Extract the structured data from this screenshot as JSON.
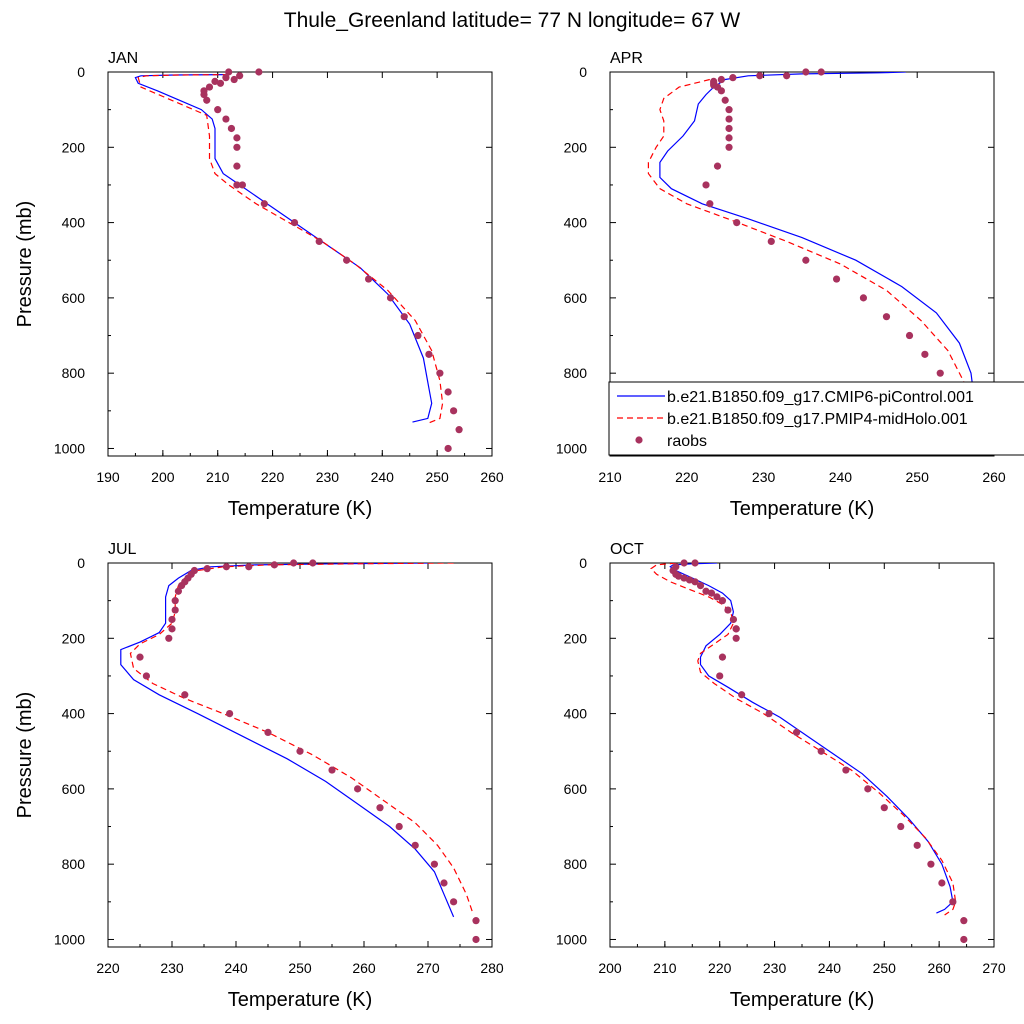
{
  "title": "Thule_Greenland  latitude= 77 N longitude= 67 W",
  "colors": {
    "control": "#0000ff",
    "midholo": "#ff0000",
    "raobs": "#a8325e",
    "axis": "#000000"
  },
  "legend": {
    "items": [
      {
        "label": "b.e21.B1850.f09_g17.CMIP6-piControl.001",
        "style": "solid",
        "color": "#0000ff"
      },
      {
        "label": "b.e21.B1850.f09_g17.PMIP4-midHolo.001",
        "style": "dashed",
        "color": "#ff0000"
      },
      {
        "label": "raobs",
        "style": "marker",
        "color": "#a8325e"
      }
    ],
    "placement": "inside APR panel, lower right"
  },
  "chart_data": [
    {
      "type": "line",
      "panel": "JAN",
      "xlabel": "Temperature (K)",
      "ylabel": "Pressure (mb)",
      "xlim": [
        190,
        260
      ],
      "ylim": [
        1020,
        0
      ],
      "y_reversed": true,
      "xticks": [
        190,
        200,
        210,
        220,
        230,
        240,
        250,
        260
      ],
      "yticks": [
        0,
        200,
        400,
        600,
        800,
        1000
      ],
      "show_ylabel": true,
      "series": [
        {
          "name": "b.e21.B1850.f09_g17.CMIP6-piControl.001",
          "style": "solid",
          "color": "#0000ff",
          "x": [
            211.5,
            202,
            196,
            195,
            195.5,
            199,
            203,
            207,
            209,
            209.5,
            209.5,
            211,
            214,
            218,
            224,
            230,
            236,
            241,
            245,
            247.5,
            248.5,
            249,
            248.3,
            245.5
          ],
          "y": [
            7,
            8,
            10,
            15,
            30,
            50,
            75,
            100,
            125,
            150,
            230,
            270,
            300,
            340,
            400,
            460,
            520,
            590,
            670,
            760,
            840,
            880,
            920,
            930
          ]
        },
        {
          "name": "b.e21.B1850.f09_g17.PMIP4-midHolo.001",
          "style": "dashed",
          "color": "#ff0000",
          "x": [
            212,
            203,
            197,
            195.5,
            196,
            200,
            204,
            208,
            208.5,
            208.5,
            209.5,
            212,
            217,
            223,
            229,
            235,
            241,
            246,
            249,
            250.5,
            251,
            250.5,
            248
          ],
          "y": [
            7,
            8,
            10,
            15,
            40,
            65,
            90,
            115,
            170,
            230,
            270,
            300,
            350,
            400,
            450,
            510,
            580,
            660,
            740,
            820,
            880,
            920,
            935
          ]
        },
        {
          "name": "raobs",
          "style": "marker",
          "color": "#a8325e",
          "x": [
            217.5,
            214,
            213,
            212,
            211.5,
            210.5,
            209.5,
            208.5,
            207.5,
            207.5,
            208,
            210,
            211.5,
            212.5,
            213.5,
            213.5,
            213.5,
            213.5,
            214.5,
            218.5,
            224,
            228.5,
            233.5,
            237.5,
            241.5,
            244,
            246.5,
            248.5,
            250.5,
            252,
            253,
            254,
            252
          ],
          "y": [
            0,
            10,
            20,
            0,
            15,
            30,
            25,
            40,
            50,
            60,
            75,
            100,
            125,
            150,
            175,
            200,
            250,
            300,
            300,
            350,
            400,
            450,
            500,
            550,
            600,
            650,
            700,
            750,
            800,
            850,
            900,
            950,
            1000
          ]
        }
      ]
    },
    {
      "type": "line",
      "panel": "APR",
      "xlabel": "Temperature (K)",
      "ylabel": "",
      "xlim": [
        210,
        260
      ],
      "ylim": [
        1020,
        0
      ],
      "y_reversed": true,
      "xticks": [
        210,
        220,
        230,
        240,
        250,
        260
      ],
      "yticks": [
        0,
        200,
        400,
        600,
        800,
        1000
      ],
      "show_ylabel": false,
      "series": [
        {
          "name": "b.e21.B1850.f09_g17.CMIP6-piControl.001",
          "style": "solid",
          "color": "#0000ff",
          "x": [
            248.5,
            245,
            235,
            228,
            225,
            223.5,
            222.5,
            221.5,
            221,
            219.5,
            217.5,
            216.5,
            216.5,
            218,
            222,
            228,
            235,
            242,
            248,
            252.5,
            255.5,
            257,
            257.5,
            257
          ],
          "y": [
            0,
            2,
            5,
            10,
            20,
            40,
            60,
            85,
            130,
            170,
            210,
            240,
            280,
            310,
            350,
            390,
            440,
            500,
            570,
            640,
            720,
            800,
            880,
            930
          ]
        },
        {
          "name": "b.e21.B1850.f09_g17.PMIP4-midHolo.001",
          "style": "dashed",
          "color": "#ff0000",
          "x": [
            223,
            219,
            217,
            216.5,
            217,
            217,
            216,
            215,
            215,
            216.5,
            220,
            226,
            233,
            240,
            246,
            250.5,
            254,
            256,
            257,
            256.5
          ],
          "y": [
            20,
            40,
            70,
            100,
            130,
            170,
            200,
            240,
            270,
            310,
            350,
            395,
            450,
            510,
            580,
            660,
            740,
            820,
            880,
            930
          ]
        },
        {
          "name": "raobs",
          "style": "marker",
          "color": "#a8325e",
          "x": [
            237.5,
            235.5,
            233,
            229.5,
            226,
            224.5,
            223.5,
            223.5,
            223.5,
            224,
            224.5,
            225,
            225.5,
            225.5,
            225.5,
            225.5,
            225.5,
            224,
            222.5,
            223,
            226.5,
            231,
            235.5,
            239.5,
            243,
            246,
            249,
            251,
            253,
            254.5,
            256,
            257,
            257
          ],
          "y": [
            0,
            0,
            10,
            10,
            15,
            20,
            25,
            30,
            35,
            40,
            50,
            75,
            100,
            125,
            150,
            175,
            200,
            250,
            300,
            350,
            400,
            450,
            500,
            550,
            600,
            650,
            700,
            750,
            800,
            850,
            900,
            950,
            1000
          ]
        }
      ]
    },
    {
      "type": "line",
      "panel": "JUL",
      "xlabel": "Temperature (K)",
      "ylabel": "Pressure (mb)",
      "xlim": [
        220,
        280
      ],
      "ylim": [
        1020,
        0
      ],
      "y_reversed": true,
      "xticks": [
        220,
        230,
        240,
        250,
        260,
        270,
        280
      ],
      "yticks": [
        0,
        200,
        400,
        600,
        800,
        1000
      ],
      "show_ylabel": true,
      "series": [
        {
          "name": "b.e21.B1850.f09_g17.CMIP6-piControl.001",
          "style": "solid",
          "color": "#0000ff",
          "x": [
            270,
            255,
            243,
            236,
            233,
            231,
            229.5,
            229,
            229,
            229,
            228,
            225,
            222,
            222,
            224,
            228,
            234,
            241,
            248,
            254,
            259,
            264,
            268,
            271,
            272.5,
            274
          ],
          "y": [
            0,
            2,
            5,
            10,
            20,
            40,
            60,
            90,
            130,
            160,
            185,
            210,
            230,
            270,
            310,
            350,
            400,
            460,
            520,
            580,
            640,
            700,
            760,
            820,
            880,
            940
          ]
        },
        {
          "name": "b.e21.B1850.f09_g17.PMIP4-midHolo.001",
          "style": "dashed",
          "color": "#ff0000",
          "x": [
            274,
            258,
            245,
            238,
            234,
            232,
            231,
            230.5,
            230.5,
            230,
            228,
            225,
            223.5,
            224,
            227,
            232,
            238,
            245,
            252,
            258,
            263,
            268,
            271.5,
            274,
            276,
            277
          ],
          "y": [
            0,
            2,
            5,
            10,
            20,
            40,
            60,
            90,
            130,
            160,
            190,
            215,
            240,
            280,
            320,
            360,
            400,
            450,
            510,
            570,
            630,
            690,
            750,
            810,
            880,
            930
          ]
        },
        {
          "name": "raobs",
          "style": "marker",
          "color": "#a8325e",
          "x": [
            252,
            249,
            246,
            242,
            238.5,
            235.5,
            233.5,
            233,
            232.5,
            232,
            231.5,
            231,
            230.5,
            230.5,
            230,
            230,
            229.5,
            225,
            226,
            232,
            239,
            245,
            250,
            255,
            259,
            262.5,
            265.5,
            268,
            271,
            272.5,
            274,
            277.5,
            277.5
          ],
          "y": [
            0,
            0,
            5,
            10,
            10,
            15,
            20,
            30,
            40,
            50,
            60,
            75,
            100,
            125,
            150,
            175,
            200,
            250,
            300,
            350,
            400,
            450,
            500,
            550,
            600,
            650,
            700,
            750,
            800,
            850,
            900,
            950,
            1000
          ]
        }
      ]
    },
    {
      "type": "line",
      "panel": "OCT",
      "xlabel": "Temperature (K)",
      "ylabel": "",
      "xlim": [
        200,
        270
      ],
      "ylim": [
        1020,
        0
      ],
      "y_reversed": true,
      "xticks": [
        200,
        210,
        220,
        230,
        240,
        250,
        260,
        270
      ],
      "yticks": [
        0,
        200,
        400,
        600,
        800,
        1000
      ],
      "show_ylabel": false,
      "series": [
        {
          "name": "b.e21.B1850.f09_g17.CMIP6-piControl.001",
          "style": "solid",
          "color": "#0000ff",
          "x": [
            219.5,
            215,
            211.5,
            211,
            212,
            215,
            218,
            220.5,
            222,
            222.5,
            222,
            220,
            217.5,
            216.5,
            216.5,
            218,
            221.5,
            226,
            231,
            236,
            241,
            246,
            250.5,
            254.5,
            258,
            260.5,
            262,
            262.5,
            261,
            259.5
          ],
          "y": [
            0,
            2,
            5,
            10,
            20,
            40,
            60,
            80,
            100,
            130,
            160,
            190,
            220,
            250,
            270,
            300,
            330,
            370,
            410,
            460,
            510,
            560,
            620,
            680,
            740,
            800,
            860,
            900,
            920,
            930
          ]
        },
        {
          "name": "b.e21.B1850.f09_g17.PMIP4-midHolo.001",
          "style": "dashed",
          "color": "#ff0000",
          "x": [
            212,
            208.5,
            207.5,
            208.5,
            211,
            214.5,
            218,
            220.5,
            222,
            222.5,
            221.5,
            219,
            216.5,
            216,
            216.5,
            219,
            223,
            228,
            233,
            238.5,
            244,
            249,
            253.5,
            257.5,
            260.5,
            262.5,
            263,
            262.5,
            261
          ],
          "y": [
            0,
            5,
            15,
            30,
            50,
            70,
            90,
            110,
            130,
            160,
            190,
            215,
            240,
            260,
            290,
            320,
            360,
            400,
            450,
            500,
            550,
            610,
            670,
            730,
            790,
            850,
            900,
            920,
            935
          ]
        },
        {
          "name": "raobs",
          "style": "marker",
          "color": "#a8325e",
          "x": [
            215.5,
            213.5,
            212,
            211.5,
            212,
            212.5,
            213.5,
            214.5,
            215.5,
            216.5,
            217.5,
            218.5,
            219.5,
            220.5,
            221.5,
            222.5,
            223,
            223,
            223,
            220.5,
            220,
            224,
            229,
            234,
            238.5,
            243,
            247,
            250,
            253,
            256,
            258.5,
            260.5,
            262.5,
            264.5,
            264.5
          ],
          "y": [
            0,
            0,
            10,
            20,
            30,
            35,
            40,
            45,
            50,
            60,
            75,
            80,
            90,
            100,
            125,
            150,
            175,
            200,
            175,
            250,
            300,
            350,
            400,
            450,
            500,
            550,
            600,
            650,
            700,
            750,
            800,
            850,
            900,
            950,
            1000
          ]
        }
      ]
    }
  ]
}
